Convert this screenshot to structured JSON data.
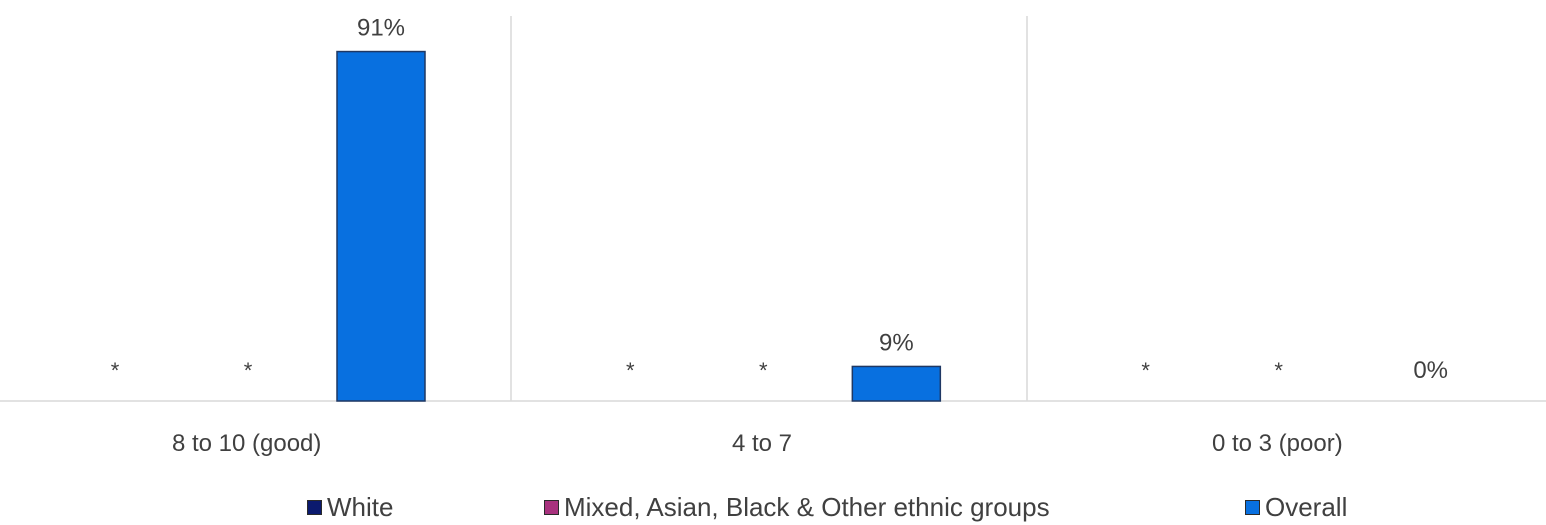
{
  "chart_data": {
    "type": "bar",
    "categories": [
      "8 to 10 (good)",
      "4 to 7",
      "0 to 3 (poor)"
    ],
    "series": [
      {
        "name": "White",
        "color": "#0b1a6e",
        "values": [
          null,
          null,
          null
        ],
        "labels": [
          "*",
          "*",
          "*"
        ]
      },
      {
        "name": "Mixed, Asian, Black & Other ethnic groups",
        "color": "#a8327e",
        "values": [
          null,
          null,
          null
        ],
        "labels": [
          "*",
          "*",
          "*"
        ]
      },
      {
        "name": "Overall",
        "color": "#0870e0",
        "values": [
          91,
          9,
          0
        ],
        "labels": [
          "91%",
          "9%",
          "0%"
        ]
      }
    ],
    "ylim": [
      0,
      100
    ],
    "grid": false,
    "legend_position": "bottom"
  }
}
